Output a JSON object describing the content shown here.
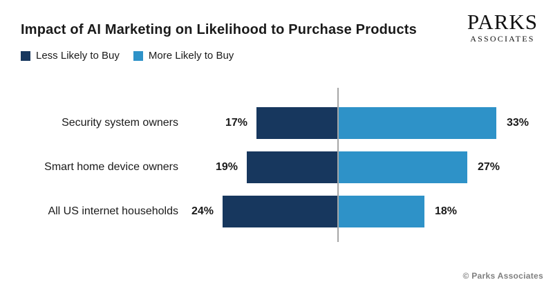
{
  "header": {
    "title": "Impact of AI Marketing on Likelihood to Purchase Products",
    "logo": {
      "line1": "PARKS",
      "line2": "ASSOCIATES"
    }
  },
  "legend": [
    {
      "label": "Less Likely to Buy",
      "color": "#17375e"
    },
    {
      "label": "More Likely to Buy",
      "color": "#2e92c8"
    }
  ],
  "chart_data": {
    "type": "bar",
    "orientation": "horizontal-diverging",
    "title": "Impact of AI Marketing on Likelihood to Purchase Products",
    "categories": [
      "Security system owners",
      "Smart home device owners",
      "All US internet households"
    ],
    "series": [
      {
        "name": "Less Likely to Buy",
        "direction": "left",
        "color": "#17375e",
        "values": [
          17,
          19,
          24
        ],
        "labels": [
          "17%",
          "19%",
          "24%"
        ]
      },
      {
        "name": "More Likely to Buy",
        "direction": "right",
        "color": "#2e92c8",
        "values": [
          33,
          27,
          18
        ],
        "labels": [
          "33%",
          "27%",
          "18%"
        ]
      }
    ],
    "unit": "%",
    "axis": {
      "zero_line": true,
      "zero_line_color": "#a6a6a6"
    },
    "grid": false,
    "legend_position": "top-left",
    "value_labels": "outside-bar-ends"
  },
  "footer": {
    "copyright": "© Parks Associates"
  }
}
